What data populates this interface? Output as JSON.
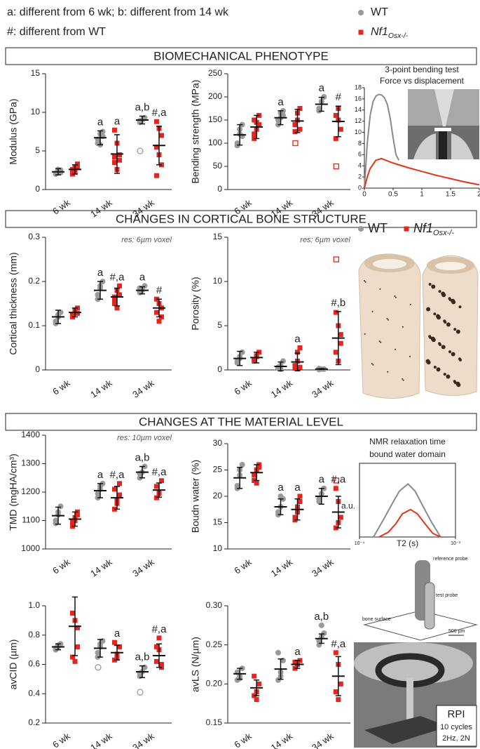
{
  "notes": [
    "a: different from 6 wk; b: different from 14 wk",
    "#: different from WT"
  ],
  "legend": [
    {
      "name": "WT",
      "color": "#9a9a9a"
    },
    {
      "name": "Nf1",
      "sub": "Osx-/-",
      "color": "#e3261f"
    }
  ],
  "sections": [
    "BIOMECHANICAL PHENOTYPE",
    "CHANGES IN CORTICAL BONE STRUCTURE",
    "CHANGES AT THE MATERIAL LEVEL"
  ],
  "rpi": {
    "labels": [
      "reference probe",
      "test probe",
      "bone surface",
      "500 µm"
    ],
    "box": [
      "RPI",
      "10 cycles",
      "2Hz, 2N"
    ]
  },
  "chart_data": [
    {
      "type": "strip",
      "ylabel": "Modulus (GPa)",
      "categories": [
        "6 wk",
        "14 wk",
        "34 wk"
      ],
      "ylim": [
        0,
        15
      ],
      "yticks": [
        0,
        5,
        10,
        15
      ],
      "series": [
        {
          "points": [
            [
              2.0,
              2.3,
              2.5,
              2.1,
              2.6,
              2.2
            ],
            [
              6.0,
              7.2,
              7.5,
              6.5,
              5.8,
              6.9
            ],
            [
              8.7,
              9.0,
              9.3,
              8.9
            ]
          ],
          "outliers": [
            [],
            [],
            [
              5.0
            ]
          ],
          "mean": [
            2.3,
            6.7,
            9.0
          ],
          "sd": [
            0.4,
            0.9,
            0.5
          ],
          "annot": [
            null,
            "a",
            "a,b"
          ]
        },
        {
          "points": [
            [
              2.0,
              2.8,
              3.3,
              2.5,
              2.3,
              2.9,
              2.6
            ],
            [
              7.7,
              6.0,
              4.5,
              3.5,
              2.6,
              3.8,
              4.2
            ],
            [
              8.8,
              7.9,
              7.0,
              5.5,
              4.5,
              3.2,
              1.8
            ]
          ],
          "outliers": [
            [],
            [],
            []
          ],
          "mean": [
            2.6,
            4.6,
            5.7
          ],
          "sd": [
            0.6,
            2.5,
            2.5
          ],
          "annot": [
            null,
            "a",
            "#,a"
          ]
        }
      ]
    },
    {
      "type": "strip",
      "ylabel": "Bending strength (MPa)",
      "categories": [
        "6 wk",
        "14 wk",
        "34 wk"
      ],
      "ylim": [
        0,
        250
      ],
      "yticks": [
        0,
        50,
        100,
        150,
        200,
        250
      ],
      "series": [
        {
          "points": [
            [
              100,
              120,
              140,
              95,
              130,
              115
            ],
            [
              140,
              155,
              170,
              150,
              165,
              160
            ],
            [
              170,
              190,
              200,
              175
            ]
          ],
          "outliers": [
            [],
            [],
            []
          ],
          "mean": [
            118,
            155,
            184
          ],
          "sd": [
            22,
            15,
            15
          ],
          "annot": [
            null,
            "a",
            "a"
          ]
        },
        {
          "points": [
            [
              110,
              145,
              160,
              120,
              130,
              140,
              150
            ],
            [
              125,
              165,
              175,
              140,
              150,
              130
            ],
            [
              160,
              175,
              130,
              110,
              150
            ]
          ],
          "outliers": [
            [],
            [
              100
            ],
            [
              50
            ]
          ],
          "mean": [
            135,
            148,
            147
          ],
          "sd": [
            25,
            25,
            33
          ],
          "annot": [
            null,
            null,
            "#"
          ]
        }
      ]
    },
    {
      "type": "line",
      "title": "3-point bending test",
      "subtitle": "Force vs displacement",
      "xlim": [
        0,
        2
      ],
      "xticks": [
        0,
        0.5,
        1,
        1.5,
        2
      ],
      "ylim": [
        0,
        18
      ],
      "yticks": [
        0,
        2,
        4,
        6,
        8,
        10,
        12,
        14,
        16,
        18
      ],
      "series": [
        {
          "color": "#8a8a8a",
          "x": [
            0,
            0.05,
            0.1,
            0.15,
            0.2,
            0.25,
            0.3,
            0.35,
            0.4,
            0.45,
            0.5,
            0.55,
            0.6
          ],
          "values": [
            0,
            8,
            13,
            15.5,
            16.5,
            16.8,
            16.7,
            16.2,
            15,
            12.5,
            9,
            6,
            5
          ]
        },
        {
          "color": "#e3341a",
          "x": [
            0,
            0.05,
            0.1,
            0.2,
            0.3,
            0.5,
            0.75,
            1,
            1.25,
            1.5,
            1.75,
            2
          ],
          "values": [
            0,
            2,
            3.5,
            5,
            5.3,
            4.5,
            3.7,
            3,
            2.3,
            1.7,
            1.1,
            0.6
          ]
        }
      ]
    },
    {
      "type": "strip",
      "ylabel": "Cortical thickness (mm)",
      "note": "res: 6µm voxel",
      "categories": [
        "6 wk",
        "14 wk",
        "34 wk"
      ],
      "ylim": [
        0,
        0.3
      ],
      "yticks": [
        0,
        0.1,
        0.2,
        0.3
      ],
      "series": [
        {
          "points": [
            [
              0.11,
              0.125,
              0.13,
              0.105,
              0.12
            ],
            [
              0.16,
              0.19,
              0.2,
              0.17,
              0.185
            ],
            [
              0.175,
              0.18,
              0.19,
              0.185
            ]
          ],
          "outliers": [
            [],
            [],
            []
          ],
          "mean": [
            0.12,
            0.18,
            0.18
          ],
          "sd": [
            0.015,
            0.02,
            0.008
          ],
          "annot": [
            null,
            "a",
            "a"
          ]
        },
        {
          "points": [
            [
              0.12,
              0.135,
              0.14,
              0.125,
              0.13,
              0.128
            ],
            [
              0.15,
              0.18,
              0.19,
              0.16,
              0.14,
              0.17,
              0.165
            ],
            [
              0.16,
              0.15,
              0.12,
              0.13,
              0.11,
              0.14
            ]
          ],
          "outliers": [
            [],
            [],
            []
          ],
          "mean": [
            0.13,
            0.165,
            0.14
          ],
          "sd": [
            0.01,
            0.02,
            0.02
          ],
          "annot": [
            null,
            "#,a",
            "#"
          ]
        }
      ]
    },
    {
      "type": "strip",
      "ylabel": "Porosity (%)",
      "note": "res: 6µm voxel",
      "categories": [
        "6 wk",
        "14 wk",
        "34 wk"
      ],
      "ylim": [
        0,
        15
      ],
      "yticks": [
        0,
        5,
        10,
        15
      ],
      "series": [
        {
          "points": [
            [
              0.8,
              1.5,
              2.0,
              1.0,
              1.3
            ],
            [
              0.2,
              0.5,
              1.0,
              0.3,
              0.1
            ],
            [
              0.05,
              0.1,
              0.1,
              0.15
            ]
          ],
          "outliers": [
            [],
            [],
            []
          ],
          "mean": [
            1.3,
            0.4,
            0.1
          ],
          "sd": [
            0.8,
            0.5,
            0.05
          ],
          "annot": [
            null,
            null,
            null
          ]
        },
        {
          "points": [
            [
              1.0,
              1.5,
              2.0,
              1.2,
              1.6
            ],
            [
              0.2,
              2.0,
              2.5,
              0.5,
              1.0,
              0.3
            ],
            [
              6.5,
              5,
              3,
              2,
              1,
              4
            ]
          ],
          "outliers": [
            [],
            [],
            [
              12.5
            ]
          ],
          "mean": [
            1.4,
            0.9,
            3.6
          ],
          "sd": [
            0.6,
            1.0,
            3
          ],
          "annot": [
            null,
            "a",
            "#,b"
          ]
        }
      ]
    },
    {
      "type": "strip",
      "ylabel": "TMD (mgHA/cm³)",
      "note": "res: 10µm voxel",
      "categories": [
        "6 wk",
        "14 wk",
        "34 wk"
      ],
      "ylim": [
        1000,
        1400
      ],
      "yticks": [
        1000,
        1100,
        1200,
        1300,
        1400
      ],
      "series": [
        {
          "points": [
            [
              1090,
              1120,
              1150,
              1100,
              1130
            ],
            [
              1180,
              1210,
              1230,
              1195,
              1220
            ],
            [
              1250,
              1270,
              1290,
              1265
            ]
          ],
          "outliers": [
            [],
            [],
            []
          ],
          "mean": [
            1117,
            1205,
            1270
          ],
          "sd": [
            30,
            25,
            20
          ],
          "annot": [
            null,
            "a",
            "a,b"
          ]
        },
        {
          "points": [
            [
              1080,
              1110,
              1130,
              1095,
              1100,
              1120
            ],
            [
              1140,
              1170,
              1230,
              1210,
              1160,
              1190
            ],
            [
              1180,
              1200,
              1240,
              1220,
              1195
            ]
          ],
          "outliers": [
            [],
            [],
            []
          ],
          "mean": [
            1105,
            1180,
            1207
          ],
          "sd": [
            25,
            40,
            25
          ],
          "annot": [
            null,
            "#,a",
            "#,a"
          ]
        }
      ]
    },
    {
      "type": "strip",
      "ylabel": "Boudn water (%)",
      "categories": [
        "6 wk",
        "14 wk",
        "34 wk"
      ],
      "ylim": [
        10,
        30
      ],
      "yticks": [
        10,
        15,
        20,
        25,
        30
      ],
      "series": [
        {
          "points": [
            [
              21.5,
              24,
              26,
              22,
              25
            ],
            [
              16.5,
              18,
              19.5,
              17,
              20
            ],
            [
              19,
              20.5,
              21.5,
              19.5
            ]
          ],
          "outliers": [
            [],
            [],
            []
          ],
          "mean": [
            23.5,
            18,
            20
          ],
          "sd": [
            2,
            1.5,
            1.5
          ],
          "annot": [
            null,
            "a",
            "a"
          ]
        },
        {
          "points": [
            [
              23,
              25,
              26,
              24,
              22.5,
              25.5
            ],
            [
              16,
              18,
              20,
              15.5,
              17,
              19
            ],
            [
              21.5,
              19,
              16,
              14,
              15
            ]
          ],
          "outliers": [
            [],
            [],
            [
              23
            ]
          ],
          "mean": [
            24.5,
            17.5,
            17
          ],
          "sd": [
            1.5,
            2,
            3
          ],
          "annot": [
            null,
            "a",
            "#,a"
          ]
        }
      ]
    },
    {
      "type": "line",
      "title": "NMR relaxation time",
      "subtitle": "bound water domain",
      "ylabel": "a.u.",
      "xlabel": "T2 (s)",
      "xlog": true,
      "xlim": [
        0.0001,
        0.001
      ],
      "xticks": [
        {
          "value": 0.0001,
          "label": "10⁻⁴"
        },
        {
          "value": 0.001,
          "label": "10⁻³"
        }
      ],
      "ylim": [
        0,
        1
      ],
      "series": [
        {
          "color": "#8a8a8a",
          "x": [
            0.00014,
            0.00018,
            0.00022,
            0.00026,
            0.00032,
            0.00038,
            0.00046,
            0.00056,
            0.0007
          ],
          "values": [
            0,
            0.3,
            0.55,
            0.75,
            0.87,
            0.75,
            0.5,
            0.25,
            0
          ]
        },
        {
          "color": "#e3341a",
          "x": [
            0.00016,
            0.0002,
            0.00024,
            0.00028,
            0.00034,
            0.0004,
            0.00048,
            0.00058,
            0.0007
          ],
          "values": [
            0,
            0.08,
            0.22,
            0.38,
            0.45,
            0.38,
            0.22,
            0.06,
            0
          ]
        }
      ]
    },
    {
      "type": "strip",
      "ylabel": "avCID (µm)",
      "categories": [
        "6 wk",
        "14 wk",
        "34 wk"
      ],
      "ylim": [
        0.2,
        1
      ],
      "yticks": [
        0.2,
        0.4,
        0.6,
        0.8,
        {
          "value": 1,
          "label": "1.0"
        }
      ],
      "series": [
        {
          "points": [
            [
              0.7,
              0.72,
              0.74,
              0.71,
              0.73
            ],
            [
              0.65,
              0.72,
              0.76,
              0.68,
              0.74
            ],
            [
              0.52,
              0.55,
              0.58,
              0.54
            ]
          ],
          "outliers": [
            [],
            [
              0.58
            ],
            [
              0.41
            ]
          ],
          "mean": [
            0.72,
            0.71,
            0.55
          ],
          "sd": [
            0.02,
            0.06,
            0.04
          ],
          "annot": [
            null,
            null,
            "a,b"
          ]
        },
        {
          "points": [
            [
              0.95,
              0.9,
              0.85,
              0.65,
              0.62,
              0.72
            ],
            [
              0.63,
              0.67,
              0.72,
              0.75,
              0.65
            ],
            [
              0.72,
              0.78,
              0.6,
              0.62,
              0.7,
              0.58
            ]
          ],
          "outliers": [
            [],
            [],
            []
          ],
          "mean": [
            0.86,
            0.68,
            0.66
          ],
          "sd": [
            0.2,
            0.05,
            0.08
          ],
          "annot": [
            null,
            "a",
            "#,a"
          ]
        }
      ]
    },
    {
      "type": "strip",
      "ylabel": "avLS (N/µm)",
      "categories": [
        "6 wk",
        "14 wk",
        "34 wk"
      ],
      "ylim": [
        0.15,
        0.3
      ],
      "yticks": [
        0.15,
        {
          "value": 0.2,
          "label": "0.20"
        },
        0.25,
        {
          "value": 0.3,
          "label": "0.30"
        }
      ],
      "series": [
        {
          "points": [
            [
              0.205,
              0.21,
              0.22,
              0.215,
              0.207
            ],
            [
              0.205,
              0.215,
              0.23,
              0.24,
              0.21
            ],
            [
              0.25,
              0.26,
              0.265,
              0.255,
              0.275
            ]
          ],
          "outliers": [
            [],
            [],
            []
          ],
          "mean": [
            0.213,
            0.219,
            0.258
          ],
          "sd": [
            0.007,
            0.013,
            0.006
          ],
          "annot": [
            null,
            null,
            "a,b"
          ]
        },
        {
          "points": [
            [
              0.185,
              0.19,
              0.2,
              0.21,
              0.18
            ],
            [
              0.22,
              0.225,
              0.23,
              0.228
            ],
            [
              0.24,
              0.225,
              0.2,
              0.19,
              0.18
            ]
          ],
          "outliers": [
            [],
            [],
            []
          ],
          "mean": [
            0.195,
            0.225,
            0.21
          ],
          "sd": [
            0.01,
            0.005,
            0.025
          ],
          "annot": [
            null,
            "a",
            "#,a"
          ]
        }
      ]
    }
  ]
}
